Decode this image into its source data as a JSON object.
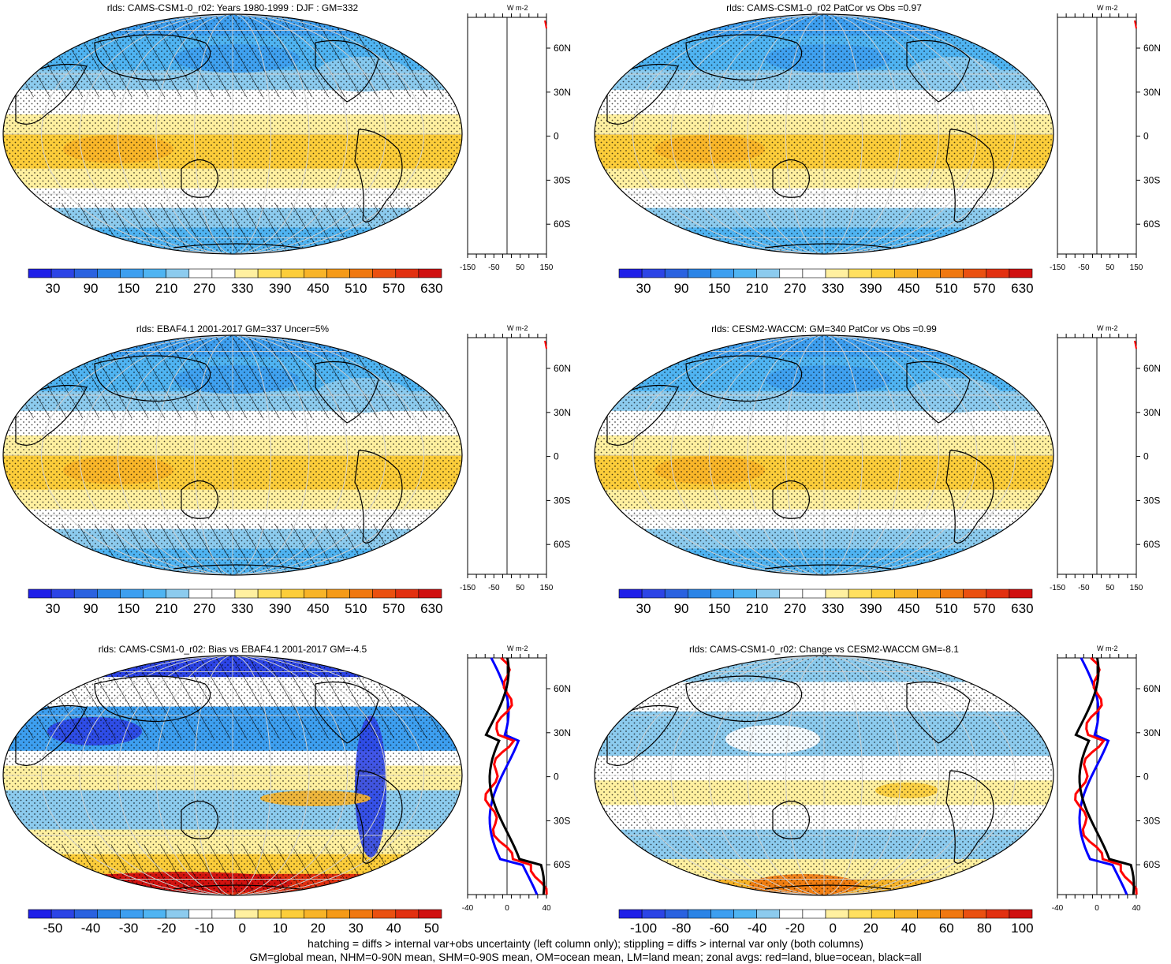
{
  "panels": [
    {
      "id": "p1",
      "title": "rlds: CAMS-CSM1-0_r02: Years 1980-1999 : DJF : GM=332",
      "kind": "abs",
      "hatched": true
    },
    {
      "id": "p2",
      "title": "rlds: CAMS-CSM1-0_r02 PatCor vs Obs =0.97",
      "kind": "abs",
      "hatched": false
    },
    {
      "id": "p3",
      "title": "rlds: EBAF4.1 2001-2017 GM=337 Uncer=5%",
      "kind": "abs",
      "hatched": true
    },
    {
      "id": "p4",
      "title": "rlds: CESM2-WACCM: GM=340 PatCor vs Obs =0.99",
      "kind": "abs",
      "hatched": false
    },
    {
      "id": "p5",
      "title": "rlds: CAMS-CSM1-0_r02: Bias vs EBAF4.1 2001-2017 GM=-4.5",
      "kind": "bias",
      "hatched": true
    },
    {
      "id": "p6",
      "title": "rlds: CAMS-CSM1-0_r02: Change vs CESM2-WACCM GM=-8.1",
      "kind": "change",
      "hatched": false
    }
  ],
  "colorbars": {
    "abs": {
      "labels": [
        "30",
        "90",
        "150",
        "210",
        "270",
        "330",
        "390",
        "450",
        "510",
        "570",
        "630"
      ]
    },
    "bias": {
      "labels": [
        "-50",
        "-40",
        "-30",
        "-20",
        "-10",
        "0",
        "10",
        "20",
        "30",
        "40",
        "50"
      ]
    },
    "change": {
      "labels": [
        "-100",
        "-80",
        "-60",
        "-40",
        "-20",
        "0",
        "20",
        "40",
        "60",
        "80",
        "100"
      ]
    }
  },
  "zonal_axes": {
    "units": "W m-2",
    "lat_labels": [
      "60N",
      "30N",
      "0",
      "30S",
      "60S"
    ],
    "abs_ticks": [
      "-150",
      "-50",
      "50",
      "150"
    ],
    "anom_ticks": [
      "-40",
      "0",
      "40"
    ]
  },
  "colors": {
    "land": "#ff0000",
    "ocean": "#0000ff",
    "all": "#000000",
    "ramp": [
      "#1f1fe8",
      "#2c44e6",
      "#2a62e0",
      "#2b84e6",
      "#3d9ff0",
      "#4fb4f2",
      "#8ccbee",
      "#ffffff",
      "#ffffff",
      "#fff0a0",
      "#ffe060",
      "#fccd3a",
      "#f8b428",
      "#f59a18",
      "#f07810",
      "#ea5010",
      "#e23010",
      "#d01010"
    ]
  },
  "footer": {
    "line1": "hatching = diffs > internal var+obs uncertainty (left column only); stippling = diffs > internal var only (both columns)",
    "line2": "GM=global mean, NHM=0-90N mean, SHM=0-90S mean, OM=ocean mean, LM=land mean; zonal avgs: red=land, blue=ocean, black=all"
  }
}
